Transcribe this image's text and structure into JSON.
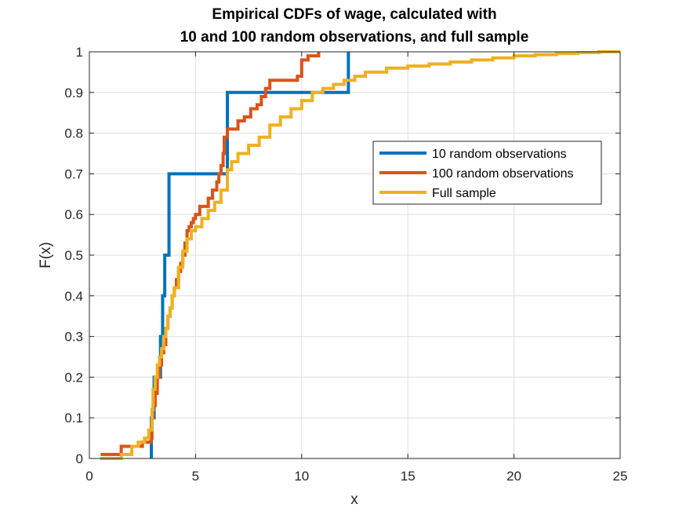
{
  "chart_data": {
    "type": "line",
    "step": true,
    "title": [
      "Empirical CDFs of wage, calculated with",
      "10 and 100 random observations, and full sample"
    ],
    "xlabel": "x",
    "ylabel": "F(x)",
    "xlim": [
      0,
      25
    ],
    "ylim": [
      0,
      1
    ],
    "xticks": [
      0,
      5,
      10,
      15,
      20,
      25
    ],
    "yticks": [
      0,
      0.1,
      0.2,
      0.3,
      0.4,
      0.5,
      0.6,
      0.7,
      0.8,
      0.9,
      1
    ],
    "xtick_labels": [
      "0",
      "5",
      "10",
      "15",
      "20",
      "25"
    ],
    "ytick_labels": [
      "0",
      "0.1",
      "0.2",
      "0.3",
      "0.4",
      "0.5",
      "0.6",
      "0.7",
      "0.8",
      "0.9",
      "1"
    ],
    "grid": true,
    "legend_position": "upper-right (inside)",
    "series": [
      {
        "name": "10 random observations",
        "color": "#0072BD",
        "x": [
          2.92,
          2.92,
          3.05,
          3.2,
          3.35,
          3.45,
          3.55,
          3.75,
          6.45,
          6.5,
          12.2,
          12.2
        ],
        "y": [
          0,
          0.1,
          0.2,
          0.2,
          0.3,
          0.4,
          0.5,
          0.7,
          0.7,
          0.9,
          0.9,
          1.0
        ]
      },
      {
        "name": "100 random observations",
        "color": "#D95319",
        "x": [
          0.53,
          1.0,
          1.4,
          1.5,
          2.0,
          2.5,
          2.9,
          2.95,
          3.0,
          3.1,
          3.2,
          3.3,
          3.4,
          3.5,
          3.6,
          3.7,
          3.8,
          3.9,
          4.0,
          4.1,
          4.2,
          4.3,
          4.4,
          4.5,
          4.6,
          4.7,
          4.8,
          4.9,
          5.0,
          5.2,
          5.4,
          5.6,
          5.8,
          6.0,
          6.1,
          6.2,
          6.3,
          6.35,
          6.5,
          6.6,
          7.0,
          7.3,
          7.6,
          7.9,
          8.1,
          8.3,
          8.5,
          9.2,
          9.8,
          10.0,
          10.3,
          10.8
        ],
        "y": [
          0.01,
          0.01,
          0.01,
          0.03,
          0.03,
          0.04,
          0.05,
          0.1,
          0.13,
          0.16,
          0.2,
          0.23,
          0.26,
          0.28,
          0.32,
          0.35,
          0.37,
          0.4,
          0.42,
          0.44,
          0.46,
          0.48,
          0.5,
          0.53,
          0.56,
          0.57,
          0.58,
          0.59,
          0.6,
          0.62,
          0.62,
          0.64,
          0.66,
          0.68,
          0.7,
          0.72,
          0.75,
          0.79,
          0.81,
          0.81,
          0.83,
          0.84,
          0.86,
          0.87,
          0.89,
          0.91,
          0.93,
          0.93,
          0.94,
          0.98,
          0.99,
          1.0
        ]
      },
      {
        "name": "Full sample",
        "color": "#EDB120",
        "x": [
          0.5,
          1.0,
          1.5,
          2.0,
          2.3,
          2.6,
          2.8,
          2.95,
          3.0,
          3.1,
          3.2,
          3.3,
          3.4,
          3.5,
          3.6,
          3.7,
          3.8,
          3.9,
          4.0,
          4.2,
          4.4,
          4.6,
          4.8,
          5.0,
          5.3,
          5.6,
          5.9,
          6.2,
          6.5,
          6.7,
          7.0,
          7.5,
          8.0,
          8.5,
          9.0,
          9.5,
          10.0,
          10.5,
          11.0,
          11.5,
          12.0,
          12.5,
          13.0,
          14.0,
          15.0,
          16.0,
          17.0,
          18.0,
          19.0,
          20.0,
          21.0,
          22.0,
          23.0,
          24.0,
          25.0
        ],
        "y": [
          0.0,
          0.0,
          0.01,
          0.03,
          0.04,
          0.05,
          0.07,
          0.12,
          0.17,
          0.2,
          0.23,
          0.25,
          0.27,
          0.3,
          0.32,
          0.35,
          0.37,
          0.4,
          0.42,
          0.47,
          0.51,
          0.54,
          0.56,
          0.57,
          0.59,
          0.61,
          0.63,
          0.66,
          0.71,
          0.73,
          0.75,
          0.77,
          0.79,
          0.82,
          0.84,
          0.86,
          0.88,
          0.9,
          0.91,
          0.92,
          0.93,
          0.94,
          0.95,
          0.96,
          0.965,
          0.97,
          0.975,
          0.98,
          0.985,
          0.99,
          0.993,
          0.996,
          0.998,
          1.0,
          1.0
        ]
      }
    ]
  }
}
